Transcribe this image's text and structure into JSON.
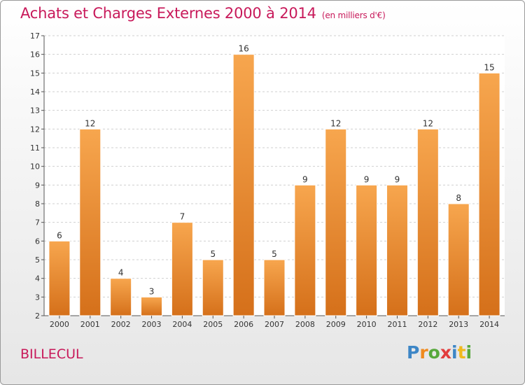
{
  "header": {
    "title": "Achats et Charges Externes 2000 à 2014",
    "subtitle": "(en milliers d'€)"
  },
  "footer": {
    "place": "BILLECUL",
    "logo_letters": [
      "P",
      "r",
      "o",
      "x",
      "i",
      "t",
      "i"
    ],
    "logo_colors": [
      "#3d86c6",
      "#f08a1e",
      "#57a83c",
      "#e23d3d",
      "#3d86c6",
      "#f0b91e",
      "#57a83c"
    ]
  },
  "colors": {
    "bar_top": "#f7a64e",
    "bar_bottom": "#d5701a",
    "title": "#c8195a"
  },
  "chart_data": {
    "type": "bar",
    "categories": [
      "2000",
      "2001",
      "2002",
      "2003",
      "2004",
      "2005",
      "2006",
      "2007",
      "2008",
      "2009",
      "2010",
      "2011",
      "2012",
      "2013",
      "2014"
    ],
    "values": [
      6,
      12,
      4,
      3,
      7,
      5,
      16,
      5,
      9,
      12,
      9,
      9,
      12,
      8,
      15
    ],
    "ylim": [
      2,
      17
    ],
    "yticks": [
      "2",
      "3",
      "4",
      "5",
      "6",
      "7",
      "8",
      "9",
      "10",
      "11",
      "12",
      "13",
      "14",
      "15",
      "16",
      "17"
    ],
    "grid": true
  }
}
